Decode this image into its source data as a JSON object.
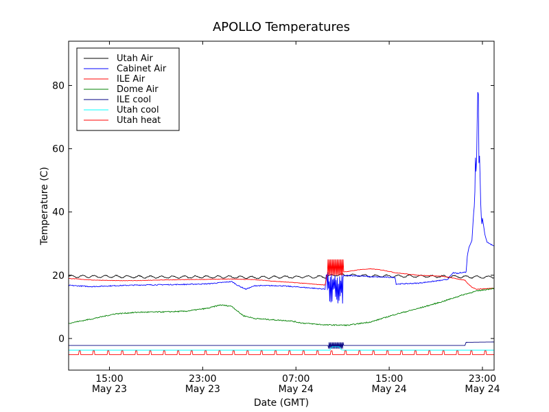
{
  "chart_data": {
    "type": "line",
    "title": "APOLLO Temperatures",
    "xlabel": "Date (GMT)",
    "ylabel": "Temperature (C)",
    "x_unit": "hours since 2024-05-23 11:30 GMT",
    "xlim": [
      0,
      36.5
    ],
    "ylim": [
      -10,
      94
    ],
    "yticks": [
      0,
      20,
      40,
      60,
      80
    ],
    "xticks": [
      {
        "x": 3.5,
        "time": "15:00",
        "date": "May 23"
      },
      {
        "x": 11.5,
        "time": "23:00",
        "date": "May 23"
      },
      {
        "x": 19.5,
        "time": "07:00",
        "date": "May 24"
      },
      {
        "x": 27.5,
        "time": "15:00",
        "date": "May 24"
      },
      {
        "x": 35.5,
        "time": "23:00",
        "date": "May 24"
      }
    ],
    "legend_position": "top-left",
    "series": [
      {
        "name": "Utah Air",
        "color": "#000000",
        "points": [
          [
            0,
            19.6
          ],
          [
            4,
            19.6
          ],
          [
            8,
            19.4
          ],
          [
            12,
            19.5
          ],
          [
            16,
            19.3
          ],
          [
            20,
            19.5
          ],
          [
            22,
            19.5
          ],
          [
            23,
            20.1
          ],
          [
            24.5,
            20.0
          ],
          [
            26,
            19.8
          ],
          [
            28,
            19.7
          ],
          [
            30,
            19.7
          ],
          [
            32,
            19.6
          ],
          [
            34,
            19.5
          ],
          [
            36.5,
            19.4
          ]
        ]
      },
      {
        "name": "Cabinet Air",
        "color": "#0000ff",
        "points": [
          [
            0,
            16.8
          ],
          [
            2,
            16.4
          ],
          [
            4,
            16.7
          ],
          [
            6,
            16.9
          ],
          [
            8,
            17.0
          ],
          [
            10,
            17.1
          ],
          [
            12,
            17.3
          ],
          [
            14,
            18.0
          ],
          [
            14.5,
            16.8
          ],
          [
            15.2,
            15.6
          ],
          [
            16,
            16.7
          ],
          [
            18,
            16.7
          ],
          [
            20,
            16.2
          ],
          [
            22,
            15.6
          ],
          [
            22.1,
            20.1
          ],
          [
            23,
            19.8
          ],
          [
            24,
            19.9
          ],
          [
            25,
            19.8
          ],
          [
            26,
            19.5
          ],
          [
            28,
            19.3
          ],
          [
            28.1,
            17.2
          ],
          [
            30,
            17.5
          ],
          [
            32,
            18.4
          ],
          [
            32.5,
            18.7
          ],
          [
            33,
            20.8
          ],
          [
            33.4,
            20.5
          ],
          [
            33.6,
            20.8
          ],
          [
            34.1,
            21.0
          ],
          [
            34.2,
            26.0
          ],
          [
            34.35,
            29.0
          ],
          [
            34.6,
            31.0
          ],
          [
            34.75,
            40.0
          ],
          [
            34.9,
            55.0
          ],
          [
            35.0,
            62.0
          ],
          [
            35.05,
            76.0
          ],
          [
            35.1,
            77.0
          ],
          [
            35.15,
            76.0
          ],
          [
            35.2,
            60.0
          ],
          [
            35.3,
            52.0
          ],
          [
            35.35,
            47.0
          ],
          [
            35.5,
            38.0
          ],
          [
            35.7,
            33.0
          ],
          [
            35.9,
            30.5
          ],
          [
            36.2,
            29.8
          ],
          [
            36.5,
            29.3
          ]
        ]
      },
      {
        "name": "ILE Air",
        "color": "#ff0000",
        "points": [
          [
            0,
            19.0
          ],
          [
            2,
            18.5
          ],
          [
            4,
            18.3
          ],
          [
            6,
            18.3
          ],
          [
            8,
            18.5
          ],
          [
            10,
            18.6
          ],
          [
            12,
            18.7
          ],
          [
            14,
            18.8
          ],
          [
            16,
            18.6
          ],
          [
            18,
            18.0
          ],
          [
            20,
            17.5
          ],
          [
            22,
            16.9
          ],
          [
            22.2,
            20.7
          ],
          [
            24,
            21.2
          ],
          [
            25,
            21.8
          ],
          [
            26,
            22.0
          ],
          [
            27,
            21.6
          ],
          [
            28,
            20.8
          ],
          [
            30,
            20.0
          ],
          [
            32,
            19.7
          ],
          [
            33,
            19.1
          ],
          [
            34,
            18.4
          ],
          [
            34.2,
            17.5
          ],
          [
            34.6,
            16.2
          ],
          [
            35,
            15.6
          ],
          [
            36.5,
            15.9
          ]
        ]
      },
      {
        "name": "Dome Air",
        "color": "#008000",
        "points": [
          [
            0,
            4.8
          ],
          [
            2,
            6.2
          ],
          [
            4,
            7.8
          ],
          [
            6,
            8.3
          ],
          [
            8,
            8.4
          ],
          [
            10,
            8.6
          ],
          [
            12,
            9.6
          ],
          [
            13,
            10.6
          ],
          [
            14,
            10.2
          ],
          [
            14.5,
            8.6
          ],
          [
            15,
            7.2
          ],
          [
            16,
            6.3
          ],
          [
            18,
            5.8
          ],
          [
            19,
            5.6
          ],
          [
            20,
            4.9
          ],
          [
            22,
            4.3
          ],
          [
            24,
            4.2
          ],
          [
            26,
            5.3
          ],
          [
            28,
            7.6
          ],
          [
            30,
            9.5
          ],
          [
            32,
            11.6
          ],
          [
            34,
            14.0
          ],
          [
            35,
            15.0
          ],
          [
            36.5,
            15.9
          ]
        ]
      },
      {
        "name": "ILE cool",
        "color": "#000080",
        "points": [
          [
            0,
            -2.2
          ],
          [
            10,
            -2.2
          ],
          [
            20,
            -2.2
          ],
          [
            34,
            -2.2
          ],
          [
            34.1,
            -1.2
          ],
          [
            36.5,
            -1.1
          ]
        ]
      },
      {
        "name": "Utah cool",
        "color": "#00ffff",
        "points": [
          [
            0,
            -3.7
          ],
          [
            22.4,
            -3.7
          ],
          [
            22.6,
            -2.6
          ],
          [
            23.2,
            -2.6
          ],
          [
            23.4,
            -3.6
          ],
          [
            23.6,
            -3.7
          ],
          [
            36.5,
            -3.7
          ]
        ]
      },
      {
        "name": "Utah heat",
        "color": "#ff0000",
        "points": [
          [
            0,
            -5.1
          ],
          [
            36.5,
            -5.1
          ]
        ]
      }
    ]
  }
}
